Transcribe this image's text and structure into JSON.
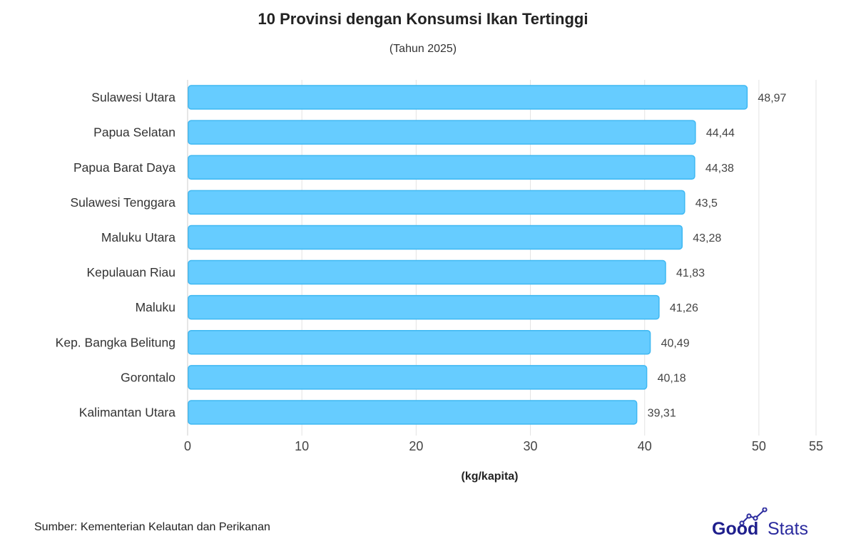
{
  "header": {
    "title": "10 Provinsi dengan Konsumsi Ikan Tertinggi",
    "subtitle": "(Tahun 2025)"
  },
  "footer": {
    "source": "Sumber: Kementerian Kelautan dan Perikanan",
    "logo_good": "Good",
    "logo_stats": "Stats"
  },
  "colors": {
    "bar_fill": "#66ccff",
    "bar_stroke": "#3fb8f2",
    "grid": "#e3e3e3",
    "logo_good": "#1e1e8c",
    "logo_stats": "#2a2a9e"
  },
  "chart_data": {
    "type": "bar",
    "orientation": "horizontal",
    "categories": [
      "Sulawesi Utara",
      "Papua Selatan",
      "Papua Barat Daya",
      "Sulawesi Tenggara",
      "Maluku Utara",
      "Kepulauan Riau",
      "Maluku",
      "Kep. Bangka Belitung",
      "Gorontalo",
      "Kalimantan Utara"
    ],
    "values": [
      48.97,
      44.44,
      44.38,
      43.5,
      43.28,
      41.83,
      41.26,
      40.49,
      40.18,
      39.31
    ],
    "value_labels": [
      "48,97",
      "44,44",
      "44,38",
      "43,5",
      "43,28",
      "41,83",
      "41,26",
      "40,49",
      "40,18",
      "39,31"
    ],
    "xlabel": "(kg/kapita)",
    "xlim": [
      0,
      55
    ],
    "xticks": [
      0,
      10,
      20,
      30,
      40,
      50,
      55
    ],
    "grid": true
  }
}
